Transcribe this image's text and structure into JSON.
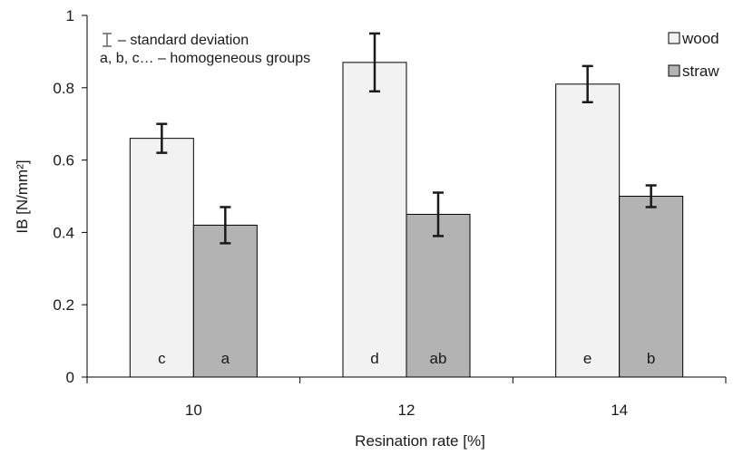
{
  "chart_data": {
    "type": "bar",
    "title": "",
    "xlabel": "Resination rate [%]",
    "ylabel": "IB [N/mm²]",
    "categories": [
      "10",
      "12",
      "14"
    ],
    "ylim": [
      0,
      1
    ],
    "yticks": [
      "0",
      "0.2",
      "0.4",
      "0.6",
      "0.8",
      "1"
    ],
    "grid": false,
    "legend_position": "top-right",
    "series": [
      {
        "name": "wood",
        "color": "#f2f2f2",
        "values": [
          0.66,
          0.87,
          0.81
        ],
        "error": [
          0.04,
          0.08,
          0.05
        ],
        "group_labels": [
          "c",
          "d",
          "e"
        ]
      },
      {
        "name": "straw",
        "color": "#b3b3b3",
        "values": [
          0.42,
          0.45,
          0.5
        ],
        "error": [
          0.05,
          0.06,
          0.03
        ],
        "group_labels": [
          "a",
          "ab",
          "b"
        ]
      }
    ],
    "annotations": {
      "std_dev": "– standard deviation",
      "groups": "a, b, c… – homogeneous groups"
    }
  }
}
